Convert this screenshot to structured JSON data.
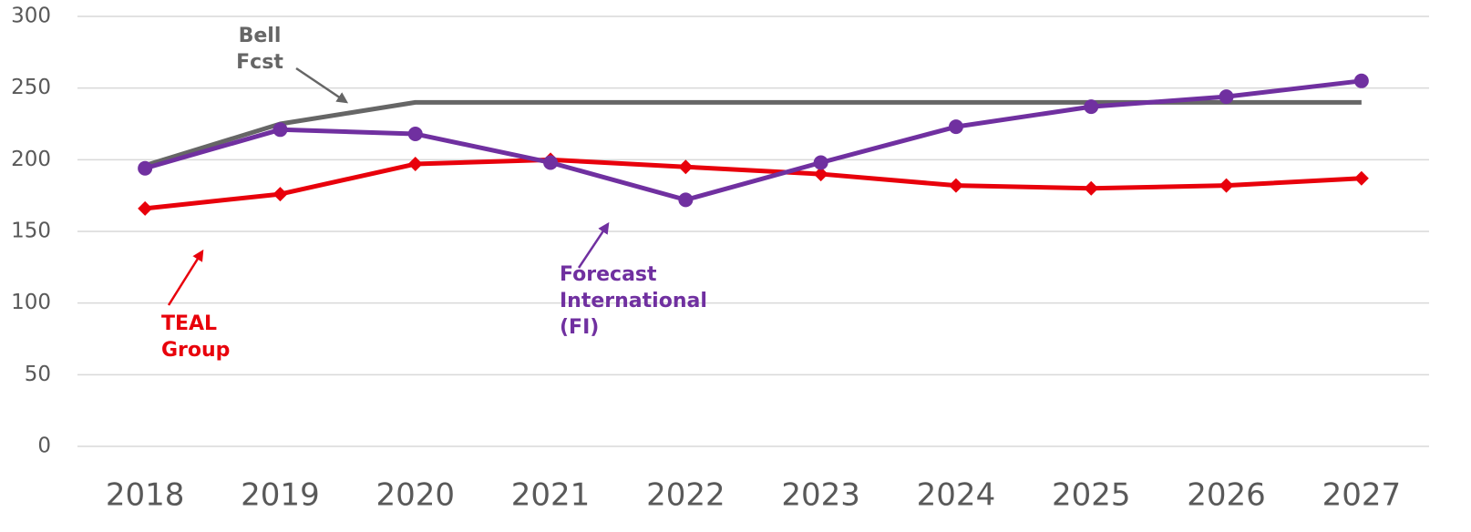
{
  "chart_data": {
    "type": "line",
    "categories": [
      "2018",
      "2019",
      "2020",
      "2021",
      "2022",
      "2023",
      "2024",
      "2025",
      "2026",
      "2027"
    ],
    "series": [
      {
        "name": "Bell Fcst",
        "color": "#666666",
        "marker": "none",
        "values": [
          196,
          225,
          240,
          240,
          240,
          240,
          240,
          240,
          240,
          240
        ]
      },
      {
        "name": "TEAL Group",
        "color": "#e8000b",
        "marker": "diamond",
        "values": [
          166,
          176,
          197,
          200,
          195,
          190,
          182,
          180,
          182,
          187
        ]
      },
      {
        "name": "Forecast International (FI)",
        "color": "#7030a0",
        "marker": "circle",
        "values": [
          194,
          221,
          218,
          198,
          172,
          198,
          223,
          237,
          244,
          255
        ]
      }
    ],
    "ylim": [
      0,
      300
    ],
    "yticks": [
      0,
      50,
      100,
      150,
      200,
      250,
      300
    ],
    "grid": true
  }
}
